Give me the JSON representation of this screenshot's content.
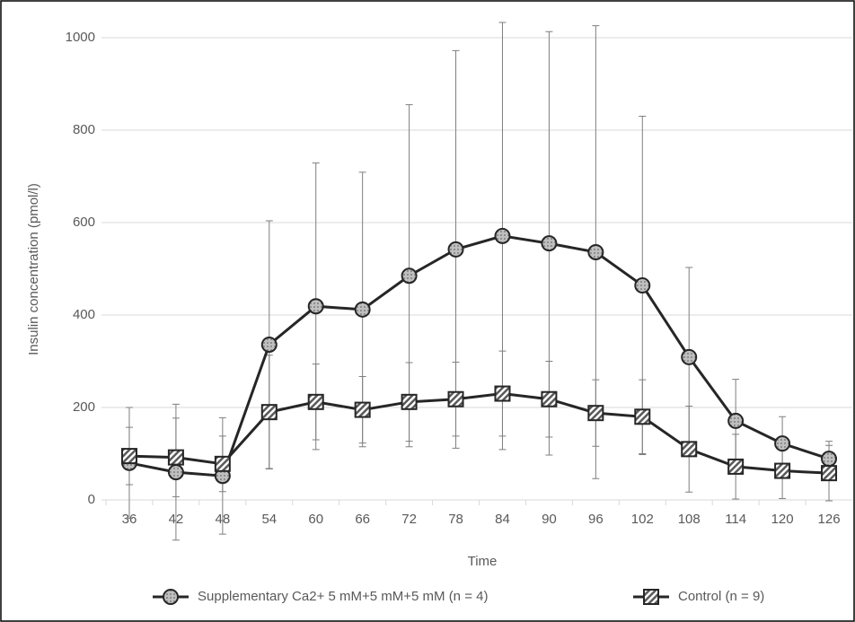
{
  "chart_data": {
    "type": "line",
    "x_label": "Time",
    "y_label": "Insulin concentration (pmol/l)",
    "categories": [
      "36",
      "42",
      "48",
      "54",
      "60",
      "66",
      "72",
      "78",
      "84",
      "90",
      "96",
      "102",
      "108",
      "114",
      "120",
      "126"
    ],
    "series": [
      {
        "name": "Supplementary Ca2+ 5 mM+5 mM+5 mM (n = 4)",
        "color": "#262626",
        "marker": "circle",
        "values": [
          80,
          60,
          52,
          336,
          419,
          412,
          485,
          542,
          571,
          555,
          536,
          464,
          309,
          171,
          122,
          89
        ],
        "errors": [
          120,
          147,
          126,
          268,
          310,
          297,
          370,
          430,
          462,
          458,
          490,
          366,
          194,
          90,
          58,
          38
        ]
      },
      {
        "name": "Control (n = 9)",
        "color": "#262626",
        "marker": "square",
        "values": [
          95,
          92,
          78,
          190,
          212,
          195,
          212,
          218,
          230,
          218,
          188,
          180,
          110,
          72,
          63,
          58
        ],
        "errors": [
          62,
          85,
          60,
          123,
          82,
          72,
          85,
          80,
          92,
          82,
          72,
          80,
          93,
          70,
          60,
          60
        ]
      }
    ],
    "ylim": [
      0,
      1000
    ],
    "yticks": [
      0,
      200,
      400,
      600,
      800,
      1000
    ],
    "grid": true,
    "legend": "bottom"
  }
}
